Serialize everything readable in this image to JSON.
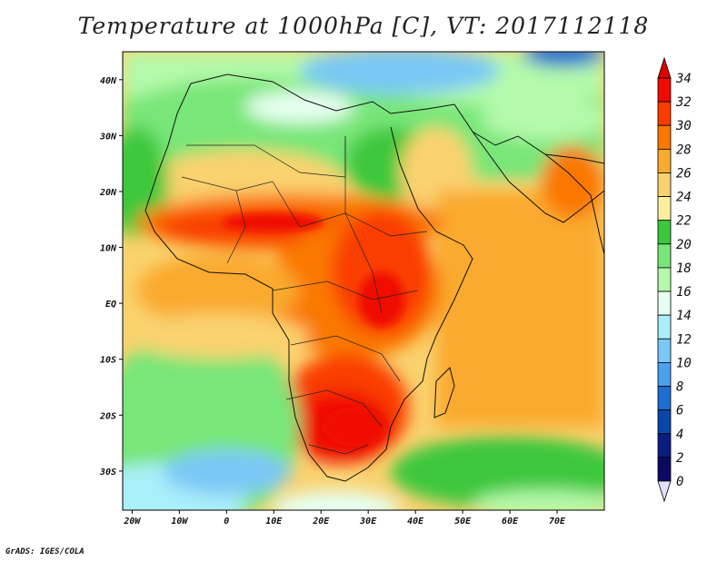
{
  "title": "Temperature at 1000hPa [C], VT: 2017112118",
  "footer": "GrADS: IGES/COLA",
  "map": {
    "lon_range": [
      -22,
      80
    ],
    "lat_range": [
      -37,
      45
    ],
    "lon_ticks": [
      "20W",
      "10W",
      "0",
      "10E",
      "20E",
      "30E",
      "40E",
      "50E",
      "60E",
      "70E"
    ],
    "lat_ticks": [
      "40N",
      "30N",
      "20N",
      "10N",
      "EQ",
      "10S",
      "20S",
      "30S"
    ]
  },
  "colorbar": {
    "levels": [
      "34",
      "32",
      "30",
      "28",
      "26",
      "24",
      "22",
      "20",
      "18",
      "16",
      "14",
      "12",
      "10",
      "8",
      "6",
      "4",
      "2",
      "0"
    ],
    "colors": [
      "#f00a00",
      "#fa3c00",
      "#fa7800",
      "#faaa2d",
      "#fad26e",
      "#fcf0a0",
      "#3cc83c",
      "#78e678",
      "#b4faaa",
      "#e6fff0",
      "#aaeefa",
      "#7ac8f5",
      "#4ba0ef",
      "#1e6ed2",
      "#0a46aa",
      "#0a1e82",
      "#0a0a64"
    ],
    "top_arrow_color": "#dc0000",
    "bottom_arrow_color": "#e0e0ff"
  }
}
